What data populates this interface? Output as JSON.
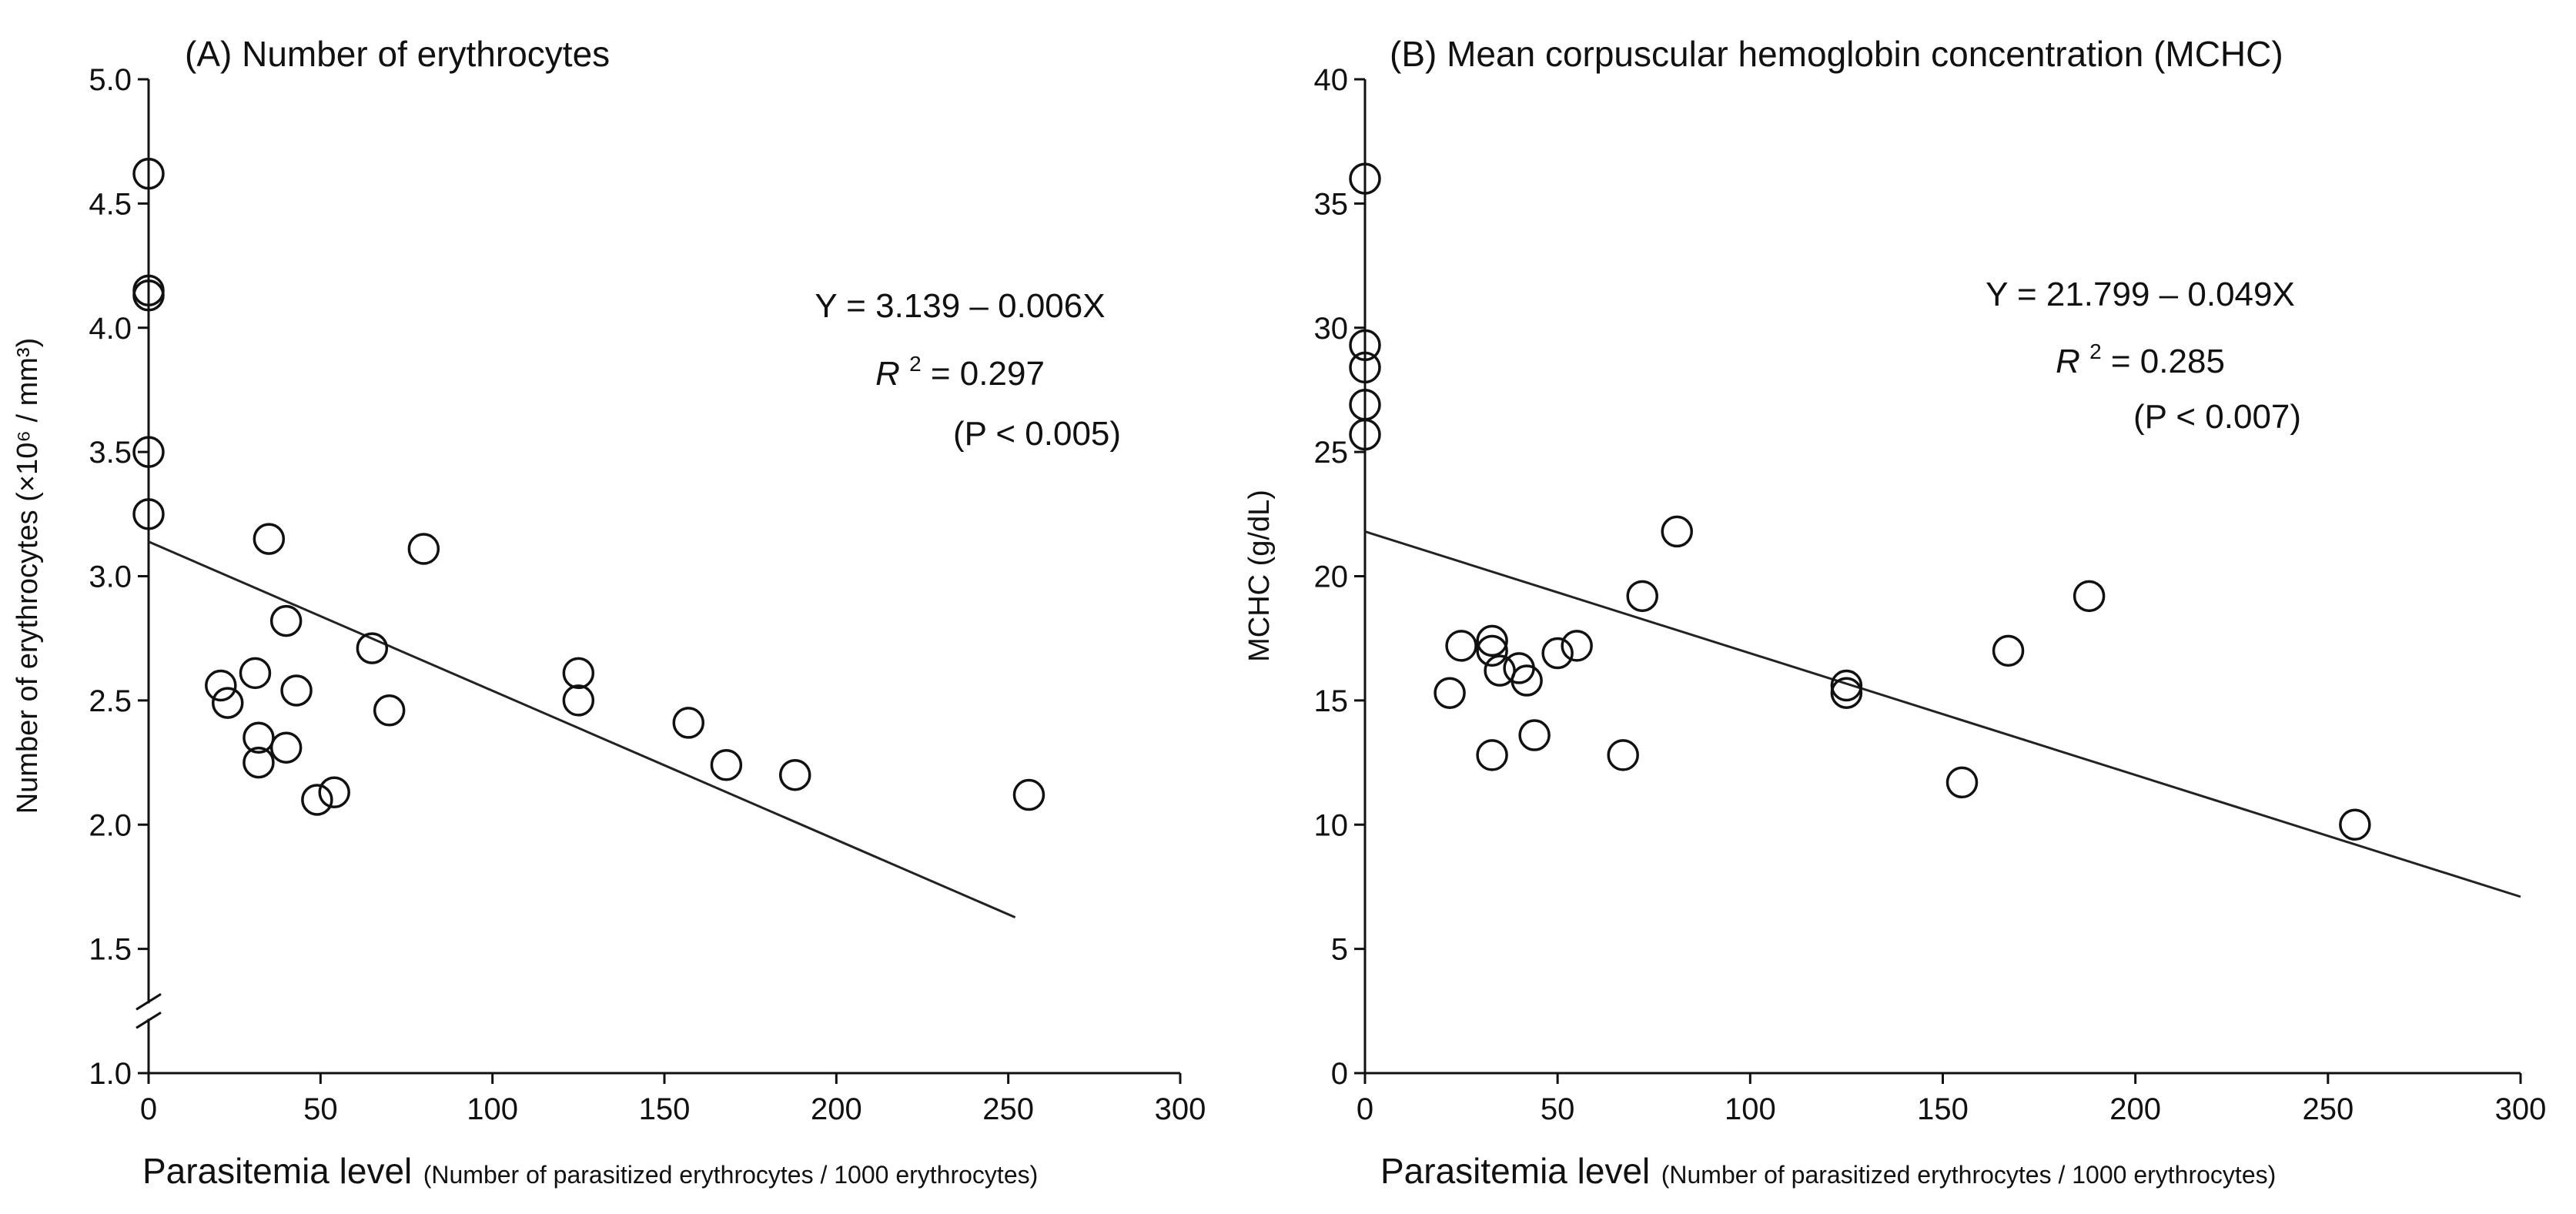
{
  "chart_data": [
    {
      "type": "scatter",
      "panel": "A",
      "title": "(A) Number of erythrocytes",
      "xlabel_main": "Parasitemia level",
      "xlabel_sub": "(Number of parasitized erythrocytes / 1000 erythrocytes)",
      "ylabel": "Number of erythrocytes (×10⁶ / mm³)",
      "xlim": [
        0,
        300
      ],
      "ylim": [
        1.0,
        5.0
      ],
      "axis_break": true,
      "xticks": [
        "0",
        "50",
        "100",
        "150",
        "200",
        "250",
        "300"
      ],
      "yticks": [
        "1.0",
        "1.5",
        "2.0",
        "2.5",
        "3.0",
        "3.5",
        "4.0",
        "4.5",
        "5.0"
      ],
      "points": [
        [
          0,
          4.62
        ],
        [
          0,
          4.15
        ],
        [
          0,
          4.13
        ],
        [
          0,
          3.5
        ],
        [
          0,
          3.25
        ],
        [
          21,
          2.56
        ],
        [
          23,
          2.49
        ],
        [
          31,
          2.61
        ],
        [
          32,
          2.35
        ],
        [
          32,
          2.25
        ],
        [
          35,
          3.15
        ],
        [
          40,
          2.82
        ],
        [
          40,
          2.31
        ],
        [
          43,
          2.54
        ],
        [
          49,
          2.1
        ],
        [
          54,
          2.13
        ],
        [
          65,
          2.71
        ],
        [
          70,
          2.46
        ],
        [
          80,
          3.11
        ],
        [
          125,
          2.61
        ],
        [
          125,
          2.5
        ],
        [
          157,
          2.41
        ],
        [
          168,
          2.24
        ],
        [
          188,
          2.2
        ],
        [
          256,
          2.12
        ]
      ],
      "fit": {
        "intercept": 3.139,
        "slope": -0.006,
        "x_range": [
          0,
          252
        ]
      },
      "equation": "Y = 3.139 – 0.006X",
      "r2_label": "R",
      "r2_exp": "2",
      "r2_value": " = 0.297",
      "p_value": "(P < 0.005)"
    },
    {
      "type": "scatter",
      "panel": "B",
      "title": "(B) Mean corpuscular hemoglobin concentration (MCHC)",
      "xlabel_main": "Parasitemia level",
      "xlabel_sub": "(Number of parasitized erythrocytes / 1000 erythrocytes)",
      "ylabel": "MCHC (g/dL)",
      "xlim": [
        0,
        300
      ],
      "ylim": [
        0,
        40
      ],
      "axis_break": false,
      "xticks": [
        "0",
        "50",
        "100",
        "150",
        "200",
        "250",
        "300"
      ],
      "yticks": [
        "0",
        "5",
        "10",
        "15",
        "20",
        "25",
        "30",
        "35",
        "40"
      ],
      "points": [
        [
          0,
          36.0
        ],
        [
          0,
          29.3
        ],
        [
          0,
          28.4
        ],
        [
          0,
          26.9
        ],
        [
          0,
          25.7
        ],
        [
          22,
          15.3
        ],
        [
          25,
          17.2
        ],
        [
          33,
          17.4
        ],
        [
          33,
          17.0
        ],
        [
          33,
          12.8
        ],
        [
          35,
          16.2
        ],
        [
          40,
          16.3
        ],
        [
          42,
          15.8
        ],
        [
          44,
          13.6
        ],
        [
          50,
          16.9
        ],
        [
          55,
          17.2
        ],
        [
          67,
          12.8
        ],
        [
          72,
          19.2
        ],
        [
          81,
          21.8
        ],
        [
          125,
          15.6
        ],
        [
          125,
          15.3
        ],
        [
          155,
          11.7
        ],
        [
          167,
          17.0
        ],
        [
          188,
          19.2
        ],
        [
          257,
          10.0
        ]
      ],
      "fit": {
        "intercept": 21.799,
        "slope": -0.049,
        "x_range": [
          0,
          300
        ]
      },
      "equation": "Y = 21.799 – 0.049X",
      "r2_label": "R",
      "r2_exp": "2",
      "r2_value": " = 0.285",
      "p_value": "(P < 0.007)"
    }
  ]
}
